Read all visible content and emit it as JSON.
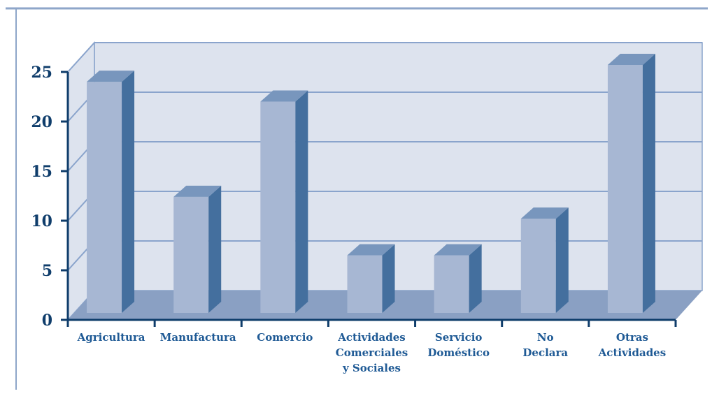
{
  "chart_data": {
    "type": "bar",
    "categories": [
      [
        "Agricultura"
      ],
      [
        "Manufactura"
      ],
      [
        "Comercio"
      ],
      [
        "Actividades",
        "Comerciales",
        "y Sociales"
      ],
      [
        "Servicio",
        "Doméstico"
      ],
      [
        "No",
        "Declara"
      ],
      [
        "Otras",
        "Actividades"
      ]
    ],
    "values": [
      23.3,
      11.7,
      21.3,
      5.8,
      5.8,
      9.5,
      25
    ],
    "yticks": [
      "0",
      "5",
      "10",
      "15",
      "20",
      "25"
    ],
    "ylim": [
      0,
      25
    ],
    "grid": true,
    "colors": {
      "background": "#ffffff",
      "panel": "#dde3ee",
      "floor": "#8aa0c3",
      "grid": "#8aa4cc",
      "bar_front": "#a7b7d3",
      "bar_side": "#446f9e",
      "bar_top": "#7896bd",
      "axis": "#0f3d6b",
      "frame": "#8ea6c9"
    }
  }
}
